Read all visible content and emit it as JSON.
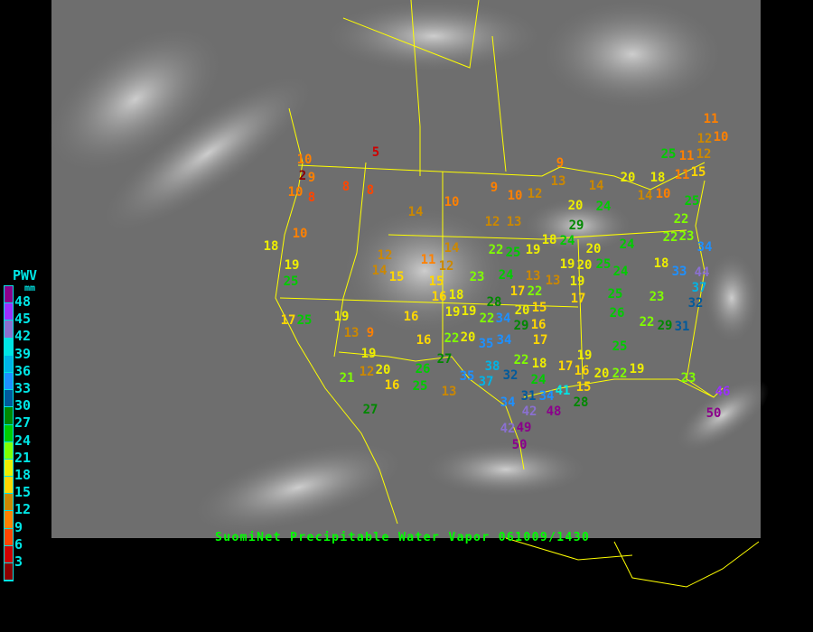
{
  "caption": "SuomiNet Precipitable Water Vapor 061009/1430",
  "legend": {
    "title": "PWV",
    "unit": "mm",
    "labels": [
      "48",
      "45",
      "42",
      "39",
      "36",
      "33",
      "30",
      "27",
      "24",
      "21",
      "18",
      "15",
      "12",
      "9",
      "6",
      "3"
    ],
    "colors_top_to_bottom": [
      "#8b008b",
      "#9b30ff",
      "#8a70d0",
      "#00e5e5",
      "#00b4e6",
      "#1e90ff",
      "#005a9c",
      "#008800",
      "#00cc00",
      "#80ff00",
      "#eeee00",
      "#ffd700",
      "#cc8800",
      "#ff8000",
      "#ff4500",
      "#d00000",
      "#8b0000"
    ]
  },
  "colors": {
    "boundary": "#ffff00",
    "legend_text": "#00e5e5",
    "caption": "#00ff00"
  },
  "stations": [
    "10",
    "2",
    "9",
    "10",
    "8",
    "8",
    "8",
    "5",
    "10",
    "18",
    "19",
    "25",
    "14",
    "10",
    "9",
    "10",
    "12",
    "12",
    "13",
    "14",
    "12",
    "14",
    "15",
    "11",
    "12",
    "15",
    "16",
    "18",
    "19",
    "19",
    "23",
    "22",
    "25",
    "19",
    "18",
    "24",
    "13",
    "13",
    "17",
    "9",
    "13",
    "14",
    "20",
    "18",
    "25",
    "11",
    "12",
    "12",
    "11",
    "10",
    "11",
    "15",
    "14",
    "10",
    "25",
    "20",
    "24",
    "29",
    "24",
    "20",
    "20",
    "25",
    "19",
    "19",
    "24",
    "24",
    "18",
    "22",
    "23",
    "22",
    "34",
    "33",
    "44",
    "37",
    "32",
    "17",
    "25",
    "23",
    "26",
    "22",
    "29",
    "31",
    "25",
    "17",
    "25",
    "19",
    "13",
    "9",
    "19",
    "12",
    "20",
    "16",
    "21",
    "27",
    "16",
    "16",
    "22",
    "20",
    "27",
    "26",
    "25",
    "13",
    "35",
    "37",
    "38",
    "32",
    "35",
    "34",
    "22",
    "28",
    "34",
    "20",
    "22",
    "29",
    "15",
    "16",
    "17",
    "22",
    "18",
    "24",
    "31",
    "34",
    "34",
    "42",
    "49",
    "42",
    "50",
    "48",
    "41",
    "17",
    "16",
    "15",
    "28",
    "19",
    "20",
    "22",
    "19",
    "23",
    "46",
    "50"
  ]
}
